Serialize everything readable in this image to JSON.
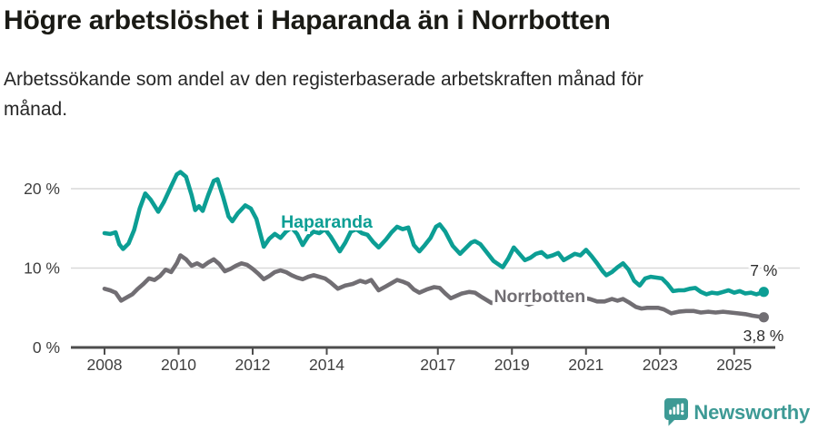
{
  "header": {
    "title": "Högre arbetslöshet i Haparanda än i Norrbotten",
    "subtitle_line1": "Arbetssökande som andel av den registerbaserade arbetskraften månad för",
    "subtitle_line2": "månad."
  },
  "chart_data": {
    "type": "line",
    "title": "",
    "xlabel": "",
    "ylabel": "",
    "grid": true,
    "xlim": [
      2007.1,
      2026.8
    ],
    "ylim": [
      0,
      22.5
    ],
    "x_ticks": [
      {
        "value": 2008,
        "label": "2008"
      },
      {
        "value": 2010,
        "label": "2010"
      },
      {
        "value": 2012,
        "label": "2012"
      },
      {
        "value": 2014,
        "label": "2014"
      },
      {
        "value": 2017,
        "label": "2017"
      },
      {
        "value": 2019,
        "label": "2019"
      },
      {
        "value": 2021,
        "label": "2021"
      },
      {
        "value": 2023,
        "label": "2023"
      },
      {
        "value": 2025,
        "label": "2025"
      }
    ],
    "y_ticks": [
      {
        "value": 0,
        "label": "0 %"
      },
      {
        "value": 10,
        "label": "10 %"
      },
      {
        "value": 20,
        "label": "20 %"
      }
    ],
    "series": [
      {
        "name": "Haparanda",
        "color": "#0c9e94",
        "end_label": "7 %",
        "label_anchor": {
          "year": 2014.0,
          "value": 15.8
        },
        "points": [
          [
            2008.0,
            14.4
          ],
          [
            2008.15,
            14.3
          ],
          [
            2008.3,
            14.5
          ],
          [
            2008.4,
            13.0
          ],
          [
            2008.5,
            12.4
          ],
          [
            2008.65,
            13.1
          ],
          [
            2008.8,
            14.8
          ],
          [
            2008.95,
            17.5
          ],
          [
            2009.1,
            19.4
          ],
          [
            2009.25,
            18.6
          ],
          [
            2009.45,
            17.1
          ],
          [
            2009.6,
            18.3
          ],
          [
            2009.8,
            20.3
          ],
          [
            2009.95,
            21.8
          ],
          [
            2010.05,
            22.1
          ],
          [
            2010.2,
            21.5
          ],
          [
            2010.35,
            19.2
          ],
          [
            2010.45,
            17.3
          ],
          [
            2010.55,
            17.8
          ],
          [
            2010.65,
            17.2
          ],
          [
            2010.8,
            19.2
          ],
          [
            2010.95,
            21.0
          ],
          [
            2011.05,
            21.2
          ],
          [
            2011.2,
            19.0
          ],
          [
            2011.35,
            16.5
          ],
          [
            2011.45,
            15.9
          ],
          [
            2011.6,
            16.9
          ],
          [
            2011.8,
            17.9
          ],
          [
            2011.95,
            17.5
          ],
          [
            2012.1,
            16.2
          ],
          [
            2012.3,
            12.7
          ],
          [
            2012.45,
            13.7
          ],
          [
            2012.6,
            14.3
          ],
          [
            2012.75,
            13.8
          ],
          [
            2012.9,
            14.6
          ],
          [
            2013.05,
            15.1
          ],
          [
            2013.2,
            14.3
          ],
          [
            2013.35,
            12.9
          ],
          [
            2013.5,
            14.0
          ],
          [
            2013.65,
            14.6
          ],
          [
            2013.8,
            14.4
          ],
          [
            2013.95,
            14.9
          ],
          [
            2014.1,
            14.0
          ],
          [
            2014.35,
            12.1
          ],
          [
            2014.5,
            13.2
          ],
          [
            2014.65,
            14.6
          ],
          [
            2014.8,
            14.9
          ],
          [
            2014.95,
            14.4
          ],
          [
            2015.1,
            14.2
          ],
          [
            2015.25,
            13.3
          ],
          [
            2015.4,
            12.6
          ],
          [
            2015.6,
            13.6
          ],
          [
            2015.75,
            14.5
          ],
          [
            2015.9,
            15.2
          ],
          [
            2016.05,
            14.9
          ],
          [
            2016.2,
            15.1
          ],
          [
            2016.35,
            12.9
          ],
          [
            2016.5,
            12.1
          ],
          [
            2016.65,
            12.9
          ],
          [
            2016.8,
            13.8
          ],
          [
            2016.95,
            15.2
          ],
          [
            2017.05,
            15.5
          ],
          [
            2017.2,
            14.6
          ],
          [
            2017.4,
            12.8
          ],
          [
            2017.6,
            11.8
          ],
          [
            2017.75,
            12.5
          ],
          [
            2017.9,
            13.2
          ],
          [
            2018.0,
            13.4
          ],
          [
            2018.15,
            13.0
          ],
          [
            2018.3,
            12.1
          ],
          [
            2018.5,
            10.9
          ],
          [
            2018.75,
            10.1
          ],
          [
            2018.9,
            11.2
          ],
          [
            2019.05,
            12.6
          ],
          [
            2019.2,
            11.8
          ],
          [
            2019.35,
            11.0
          ],
          [
            2019.5,
            11.3
          ],
          [
            2019.65,
            11.8
          ],
          [
            2019.8,
            12.0
          ],
          [
            2019.95,
            11.4
          ],
          [
            2020.1,
            11.6
          ],
          [
            2020.25,
            11.9
          ],
          [
            2020.4,
            11.0
          ],
          [
            2020.55,
            11.4
          ],
          [
            2020.7,
            11.8
          ],
          [
            2020.85,
            11.6
          ],
          [
            2021.0,
            12.3
          ],
          [
            2021.15,
            11.5
          ],
          [
            2021.3,
            10.6
          ],
          [
            2021.45,
            9.6
          ],
          [
            2021.55,
            9.1
          ],
          [
            2021.7,
            9.5
          ],
          [
            2021.85,
            10.1
          ],
          [
            2022.0,
            10.6
          ],
          [
            2022.15,
            9.8
          ],
          [
            2022.3,
            8.4
          ],
          [
            2022.45,
            7.8
          ],
          [
            2022.6,
            8.7
          ],
          [
            2022.75,
            8.9
          ],
          [
            2022.9,
            8.8
          ],
          [
            2023.05,
            8.7
          ],
          [
            2023.2,
            8.0
          ],
          [
            2023.35,
            7.1
          ],
          [
            2023.5,
            7.2
          ],
          [
            2023.65,
            7.2
          ],
          [
            2023.8,
            7.4
          ],
          [
            2023.95,
            7.5
          ],
          [
            2024.1,
            7.0
          ],
          [
            2024.25,
            6.7
          ],
          [
            2024.4,
            6.9
          ],
          [
            2024.55,
            6.8
          ],
          [
            2024.7,
            7.0
          ],
          [
            2024.85,
            7.2
          ],
          [
            2025.0,
            6.9
          ],
          [
            2025.15,
            7.1
          ],
          [
            2025.3,
            6.8
          ],
          [
            2025.45,
            6.9
          ],
          [
            2025.6,
            6.7
          ],
          [
            2025.8,
            7.0
          ]
        ]
      },
      {
        "name": "Norrbotten",
        "color": "#716e73",
        "end_label": "3,8 %",
        "label_anchor": {
          "year": 2019.75,
          "value": 6.4
        },
        "points": [
          [
            2008.0,
            7.4
          ],
          [
            2008.15,
            7.2
          ],
          [
            2008.3,
            6.9
          ],
          [
            2008.45,
            5.9
          ],
          [
            2008.6,
            6.3
          ],
          [
            2008.75,
            6.7
          ],
          [
            2008.9,
            7.4
          ],
          [
            2009.05,
            8.0
          ],
          [
            2009.2,
            8.7
          ],
          [
            2009.35,
            8.5
          ],
          [
            2009.5,
            9.0
          ],
          [
            2009.65,
            9.8
          ],
          [
            2009.8,
            9.5
          ],
          [
            2009.95,
            10.6
          ],
          [
            2010.05,
            11.6
          ],
          [
            2010.2,
            11.1
          ],
          [
            2010.35,
            10.3
          ],
          [
            2010.5,
            10.6
          ],
          [
            2010.65,
            10.2
          ],
          [
            2010.8,
            10.7
          ],
          [
            2010.95,
            11.1
          ],
          [
            2011.1,
            10.5
          ],
          [
            2011.25,
            9.6
          ],
          [
            2011.4,
            9.9
          ],
          [
            2011.55,
            10.3
          ],
          [
            2011.7,
            10.6
          ],
          [
            2011.85,
            10.4
          ],
          [
            2012.0,
            9.9
          ],
          [
            2012.15,
            9.3
          ],
          [
            2012.3,
            8.6
          ],
          [
            2012.45,
            9.0
          ],
          [
            2012.6,
            9.5
          ],
          [
            2012.75,
            9.7
          ],
          [
            2012.9,
            9.5
          ],
          [
            2013.05,
            9.1
          ],
          [
            2013.2,
            8.8
          ],
          [
            2013.35,
            8.6
          ],
          [
            2013.5,
            8.9
          ],
          [
            2013.65,
            9.1
          ],
          [
            2013.8,
            8.9
          ],
          [
            2013.95,
            8.7
          ],
          [
            2014.1,
            8.2
          ],
          [
            2014.3,
            7.4
          ],
          [
            2014.5,
            7.8
          ],
          [
            2014.7,
            8.0
          ],
          [
            2014.9,
            8.4
          ],
          [
            2015.05,
            8.2
          ],
          [
            2015.2,
            8.5
          ],
          [
            2015.4,
            7.2
          ],
          [
            2015.6,
            7.7
          ],
          [
            2015.75,
            8.1
          ],
          [
            2015.9,
            8.5
          ],
          [
            2016.05,
            8.3
          ],
          [
            2016.2,
            8.0
          ],
          [
            2016.35,
            7.3
          ],
          [
            2016.5,
            6.9
          ],
          [
            2016.7,
            7.3
          ],
          [
            2016.9,
            7.6
          ],
          [
            2017.05,
            7.5
          ],
          [
            2017.2,
            6.8
          ],
          [
            2017.35,
            6.2
          ],
          [
            2017.5,
            6.5
          ],
          [
            2017.65,
            6.8
          ],
          [
            2017.85,
            7.0
          ],
          [
            2018.0,
            6.9
          ],
          [
            2018.2,
            6.3
          ],
          [
            2018.45,
            5.6
          ],
          [
            2018.65,
            5.9
          ],
          [
            2018.85,
            6.3
          ],
          [
            2019.0,
            6.5
          ],
          [
            2019.2,
            5.9
          ],
          [
            2019.45,
            5.4
          ],
          [
            2019.65,
            5.7
          ],
          [
            2019.85,
            6.0
          ],
          [
            2020.05,
            6.2
          ],
          [
            2020.3,
            6.9
          ],
          [
            2020.5,
            6.8
          ],
          [
            2020.7,
            6.6
          ],
          [
            2020.9,
            6.3
          ],
          [
            2021.1,
            6.1
          ],
          [
            2021.3,
            5.8
          ],
          [
            2021.5,
            5.8
          ],
          [
            2021.7,
            6.1
          ],
          [
            2021.85,
            5.9
          ],
          [
            2022.0,
            6.1
          ],
          [
            2022.15,
            5.7
          ],
          [
            2022.35,
            5.1
          ],
          [
            2022.5,
            4.9
          ],
          [
            2022.65,
            5.0
          ],
          [
            2022.8,
            5.0
          ],
          [
            2022.95,
            5.0
          ],
          [
            2023.1,
            4.8
          ],
          [
            2023.3,
            4.3
          ],
          [
            2023.5,
            4.5
          ],
          [
            2023.7,
            4.6
          ],
          [
            2023.9,
            4.6
          ],
          [
            2024.1,
            4.4
          ],
          [
            2024.3,
            4.5
          ],
          [
            2024.5,
            4.4
          ],
          [
            2024.7,
            4.5
          ],
          [
            2024.9,
            4.4
          ],
          [
            2025.1,
            4.3
          ],
          [
            2025.3,
            4.2
          ],
          [
            2025.5,
            4.0
          ],
          [
            2025.65,
            3.9
          ],
          [
            2025.8,
            3.8
          ]
        ]
      }
    ],
    "colors": {
      "gridline": "#d9d9d9",
      "axis": "#4d4d4d",
      "tick_label": "#3f3f3f",
      "end_label": "#2d2d2d"
    }
  },
  "footer": {
    "brand": "Newsworthy"
  }
}
